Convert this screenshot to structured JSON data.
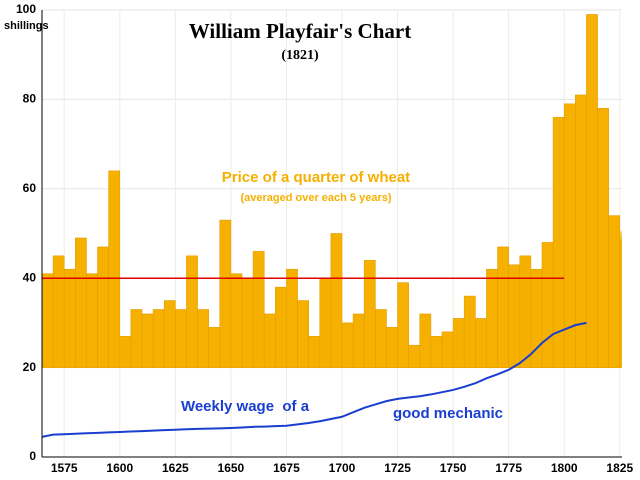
{
  "chart_data": {
    "type": "bar",
    "title": "William Playfair's Chart",
    "subtitle": "(1821)",
    "y_unit": "shillings",
    "annotations": [
      "Price of a quarter of wheat",
      "(averaged over each 5 years)",
      "Weekly wage  of a",
      "good mechanic"
    ],
    "xlim": [
      1565,
      1826
    ],
    "ylim": [
      0,
      100
    ],
    "xticks": [
      1575,
      1600,
      1625,
      1650,
      1675,
      1700,
      1725,
      1750,
      1775,
      1800,
      1825
    ],
    "yticks": [
      0,
      20,
      40,
      60,
      80,
      100
    ],
    "grid": true,
    "bar_base": 20,
    "bar_width": 5,
    "series": [
      {
        "type": "bar",
        "color": "#f5b000",
        "x": [
          1565,
          1570,
          1575,
          1580,
          1585,
          1590,
          1595,
          1600,
          1605,
          1610,
          1615,
          1620,
          1625,
          1630,
          1635,
          1640,
          1645,
          1650,
          1655,
          1660,
          1665,
          1670,
          1675,
          1680,
          1685,
          1690,
          1695,
          1700,
          1705,
          1710,
          1715,
          1720,
          1725,
          1730,
          1735,
          1740,
          1745,
          1750,
          1755,
          1760,
          1765,
          1770,
          1775,
          1780,
          1785,
          1790,
          1795,
          1800,
          1805,
          1810,
          1815,
          1820
        ],
        "values": [
          41,
          45,
          42,
          49,
          41,
          47,
          64,
          27,
          33,
          32,
          33,
          35,
          33,
          45,
          33,
          29,
          53,
          41,
          40,
          46,
          32,
          38,
          42,
          35,
          27,
          40,
          50,
          30,
          32,
          44,
          33,
          29,
          39,
          25,
          32,
          27,
          28,
          31,
          36,
          31,
          42,
          47,
          43,
          45,
          42,
          48,
          76,
          79,
          81,
          99,
          78,
          54
        ]
      },
      {
        "type": "line",
        "color": "#1a3fd0",
        "x": [
          1565,
          1570,
          1575,
          1580,
          1585,
          1590,
          1595,
          1600,
          1605,
          1610,
          1615,
          1620,
          1625,
          1630,
          1635,
          1640,
          1645,
          1650,
          1655,
          1660,
          1665,
          1670,
          1675,
          1680,
          1685,
          1690,
          1695,
          1700,
          1705,
          1710,
          1715,
          1720,
          1725,
          1730,
          1735,
          1740,
          1745,
          1750,
          1755,
          1760,
          1765,
          1770,
          1775,
          1780,
          1785,
          1790,
          1795,
          1800,
          1805,
          1810
        ],
        "values": [
          4.5,
          5,
          5.1,
          5.2,
          5.3,
          5.4,
          5.5,
          5.6,
          5.7,
          5.8,
          5.9,
          6,
          6.1,
          6.2,
          6.3,
          6.35,
          6.4,
          6.5,
          6.6,
          6.75,
          6.8,
          6.9,
          7,
          7.3,
          7.6,
          8,
          8.5,
          9,
          10,
          11,
          11.75,
          12.5,
          13,
          13.3,
          13.6,
          14,
          14.5,
          15,
          15.7,
          16.5,
          17.6,
          18.5,
          19.5,
          21,
          23,
          25.5,
          27.5,
          28.5,
          29.5,
          30
        ]
      }
    ],
    "hline": {
      "value": 40,
      "x": [
        1565,
        1800
      ],
      "color": "#e00000"
    }
  }
}
